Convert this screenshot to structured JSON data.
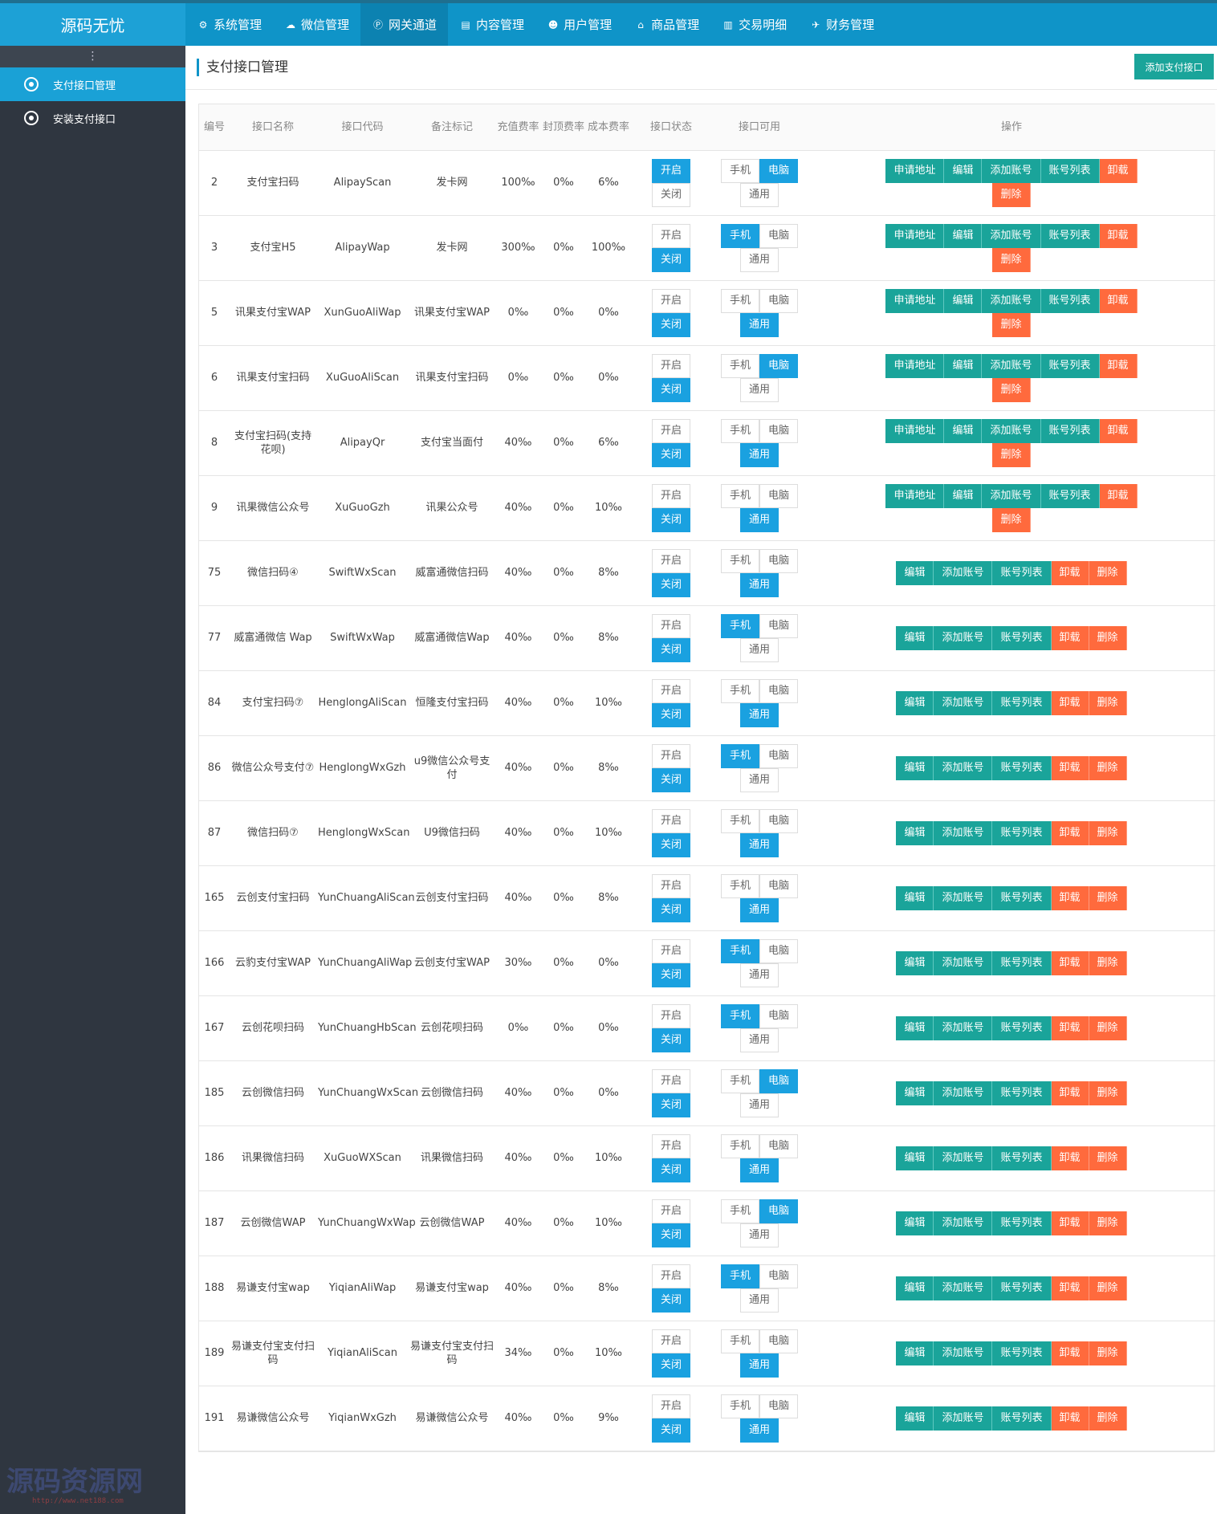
{
  "app": {
    "logo": "源码无忧"
  },
  "nav": [
    {
      "icon": "gear-icon",
      "glyph": "⚙",
      "label": "系统管理"
    },
    {
      "icon": "wechat-icon",
      "glyph": "☁",
      "label": "微信管理"
    },
    {
      "icon": "p-circle-icon",
      "glyph": "Ⓟ",
      "label": "网关通道",
      "active": true
    },
    {
      "icon": "document-icon",
      "glyph": "▤",
      "label": "内容管理"
    },
    {
      "icon": "users-icon",
      "glyph": "☻",
      "label": "用户管理"
    },
    {
      "icon": "shop-icon",
      "glyph": "⌂",
      "label": "商品管理"
    },
    {
      "icon": "bar-chart-icon",
      "glyph": "▥",
      "label": "交易明细"
    },
    {
      "icon": "finance-icon",
      "glyph": "✈",
      "label": "财务管理"
    }
  ],
  "sidebar": {
    "toggle": "⋮",
    "items": [
      {
        "label": "支付接口管理",
        "active": true
      },
      {
        "label": "安装支付接口",
        "active": false
      }
    ]
  },
  "page": {
    "title": "支付接口管理",
    "add_button": "添加支付接口"
  },
  "table": {
    "headers": {
      "id": "编号",
      "name": "接口名称",
      "code": "接口代码",
      "remark": "备注标记",
      "recharge_rate": "充值费率",
      "cap_rate": "封顶费率",
      "cost_rate": "成本费率",
      "state": "接口状态",
      "available": "接口可用",
      "ops": "操作"
    },
    "labels": {
      "on": "开启",
      "off": "关闭",
      "mobile": "手机",
      "pc": "电脑",
      "general": "通用",
      "apply": "申请地址",
      "edit": "编辑",
      "add_account": "添加账号",
      "account_list": "账号列表",
      "uninstall": "卸载",
      "delete": "删除"
    },
    "rows": [
      {
        "id": "2",
        "name": "支付宝扫码",
        "code": "AlipayScan",
        "remark": "发卡网",
        "recharge": "100‰",
        "cap": "0‰",
        "cost": "6‰",
        "state": "on",
        "avail": "pc",
        "ops": "full"
      },
      {
        "id": "3",
        "name": "支付宝H5",
        "code": "AlipayWap",
        "remark": "发卡网",
        "recharge": "300‰",
        "cap": "0‰",
        "cost": "100‰",
        "state": "off",
        "avail": "mobile",
        "ops": "full"
      },
      {
        "id": "5",
        "name": "讯果支付宝WAP",
        "code": "XunGuoAliWap",
        "remark": "讯果支付宝WAP",
        "recharge": "0‰",
        "cap": "0‰",
        "cost": "0‰",
        "state": "off",
        "avail": "general",
        "ops": "full"
      },
      {
        "id": "6",
        "name": "讯果支付宝扫码",
        "code": "XuGuoAliScan",
        "remark": "讯果支付宝扫码",
        "recharge": "0‰",
        "cap": "0‰",
        "cost": "0‰",
        "state": "off",
        "avail": "pc",
        "ops": "full"
      },
      {
        "id": "8",
        "name": "支付宝扫码(支持花呗)",
        "code": "AlipayQr",
        "remark": "支付宝当面付",
        "recharge": "40‰",
        "cap": "0‰",
        "cost": "6‰",
        "state": "off",
        "avail": "general",
        "ops": "full"
      },
      {
        "id": "9",
        "name": "讯果微信公众号",
        "code": "XuGuoGzh",
        "remark": "讯果公众号",
        "recharge": "40‰",
        "cap": "0‰",
        "cost": "10‰",
        "state": "off",
        "avail": "general",
        "ops": "full"
      },
      {
        "id": "75",
        "name": "微信扫码④",
        "code": "SwiftWxScan",
        "remark": "威富通微信扫码",
        "recharge": "40‰",
        "cap": "0‰",
        "cost": "8‰",
        "state": "off",
        "avail": "general",
        "ops": "short"
      },
      {
        "id": "77",
        "name": "威富通微信 Wap",
        "code": "SwiftWxWap",
        "remark": "威富通微信Wap",
        "recharge": "40‰",
        "cap": "0‰",
        "cost": "8‰",
        "state": "off",
        "avail": "mobile",
        "ops": "short"
      },
      {
        "id": "84",
        "name": "支付宝扫码⑦",
        "code": "HenglongAliScan",
        "remark": "恒隆支付宝扫码",
        "recharge": "40‰",
        "cap": "0‰",
        "cost": "10‰",
        "state": "off",
        "avail": "general",
        "ops": "short"
      },
      {
        "id": "86",
        "name": "微信公众号支付⑦",
        "code": "HenglongWxGzh",
        "remark": "u9微信公众号支付",
        "recharge": "40‰",
        "cap": "0‰",
        "cost": "8‰",
        "state": "off",
        "avail": "mobile",
        "ops": "short"
      },
      {
        "id": "87",
        "name": "微信扫码⑦",
        "code": "HenglongWxScan",
        "remark": "U9微信扫码",
        "recharge": "40‰",
        "cap": "0‰",
        "cost": "10‰",
        "state": "off",
        "avail": "general",
        "ops": "short"
      },
      {
        "id": "165",
        "name": "云创支付宝扫码",
        "code": "YunChuangAliScan",
        "remark": "云创支付宝扫码",
        "recharge": "40‰",
        "cap": "0‰",
        "cost": "8‰",
        "state": "off",
        "avail": "general",
        "ops": "short"
      },
      {
        "id": "166",
        "name": "云豹支付宝WAP",
        "code": "YunChuangAliWap",
        "remark": "云创支付宝WAP",
        "recharge": "30‰",
        "cap": "0‰",
        "cost": "0‰",
        "state": "off",
        "avail": "mobile",
        "ops": "short"
      },
      {
        "id": "167",
        "name": "云创花呗扫码",
        "code": "YunChuangHbScan",
        "remark": "云创花呗扫码",
        "recharge": "0‰",
        "cap": "0‰",
        "cost": "0‰",
        "state": "off",
        "avail": "mobile",
        "ops": "short"
      },
      {
        "id": "185",
        "name": "云创微信扫码",
        "code": "YunChuangWxScan",
        "remark": "云创微信扫码",
        "recharge": "40‰",
        "cap": "0‰",
        "cost": "0‰",
        "state": "off",
        "avail": "pc",
        "ops": "short"
      },
      {
        "id": "186",
        "name": "讯果微信扫码",
        "code": "XuGuoWXScan",
        "remark": "讯果微信扫码",
        "recharge": "40‰",
        "cap": "0‰",
        "cost": "10‰",
        "state": "off",
        "avail": "general",
        "ops": "short"
      },
      {
        "id": "187",
        "name": "云创微信WAP",
        "code": "YunChuangWxWap",
        "remark": "云创微信WAP",
        "recharge": "40‰",
        "cap": "0‰",
        "cost": "10‰",
        "state": "off",
        "avail": "pc",
        "ops": "short"
      },
      {
        "id": "188",
        "name": "易谦支付宝wap",
        "code": "YiqianAliWap",
        "remark": "易谦支付宝wap",
        "recharge": "40‰",
        "cap": "0‰",
        "cost": "8‰",
        "state": "off",
        "avail": "mobile",
        "ops": "short"
      },
      {
        "id": "189",
        "name": "易谦支付宝支付扫码",
        "code": "YiqianAliScan",
        "remark": "易谦支付宝支付扫码",
        "recharge": "34‰",
        "cap": "0‰",
        "cost": "10‰",
        "state": "off",
        "avail": "general",
        "ops": "short"
      },
      {
        "id": "191",
        "name": "易谦微信公众号",
        "code": "YiqianWxGzh",
        "remark": "易谦微信公众号",
        "recharge": "40‰",
        "cap": "0‰",
        "cost": "9‰",
        "state": "off",
        "avail": "general",
        "ops": "short"
      }
    ]
  },
  "watermark": {
    "text": "源码资源网",
    "url": "http://www.net188.com"
  }
}
